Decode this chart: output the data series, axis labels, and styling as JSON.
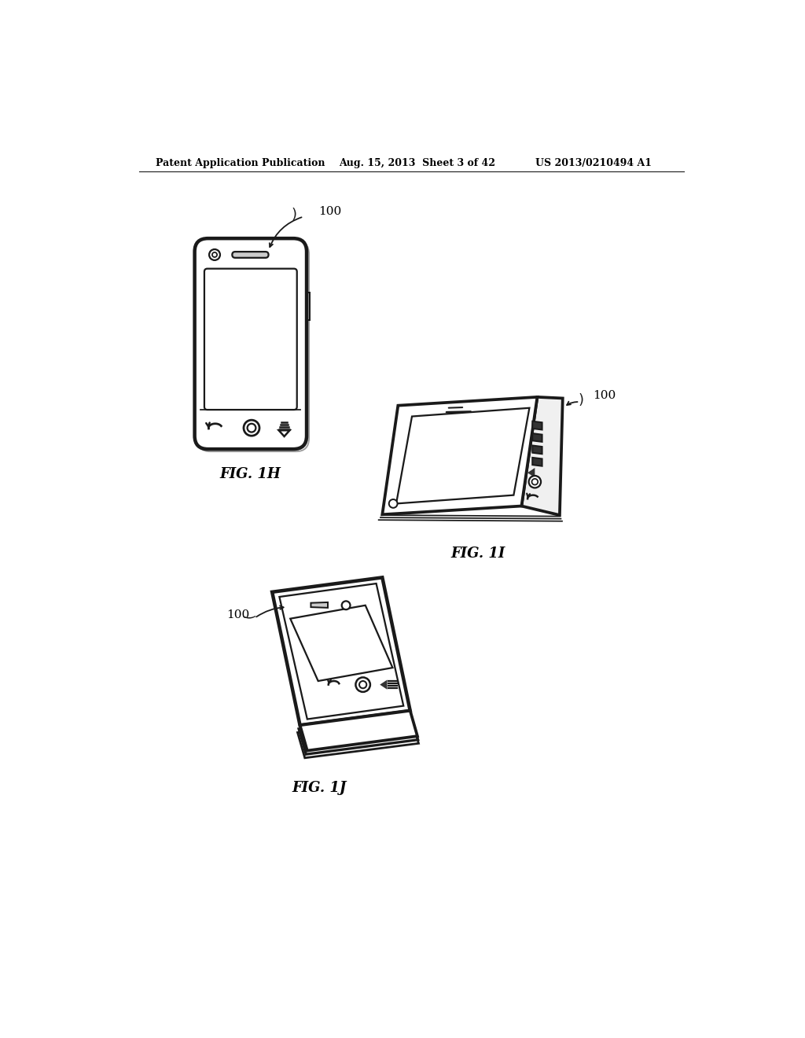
{
  "title_left": "Patent Application Publication",
  "title_mid": "Aug. 15, 2013  Sheet 3 of 42",
  "title_right": "US 2013/0210494 A1",
  "fig1h_label": "FIG. 1H",
  "fig1i_label": "FIG. 1I",
  "fig1j_label": "FIG. 1J",
  "ref_num": "100",
  "bg_color": "#ffffff",
  "line_color": "#1a1a1a",
  "line_width": 1.8,
  "thin_line": 1.0
}
